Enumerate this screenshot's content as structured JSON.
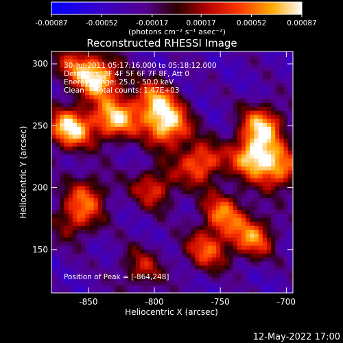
{
  "chart_data": {
    "type": "heatmap",
    "title": "Reconstructed RHESSI Image",
    "xlabel": "Heliocentric X (arcsec)",
    "ylabel": "Heliocentric Y (arcsec)",
    "xlim": [
      -878,
      -695
    ],
    "ylim": [
      115,
      310
    ],
    "x_ticks": [
      -850,
      -800,
      -750,
      -700
    ],
    "y_ticks": [
      150,
      200,
      250,
      300
    ],
    "colorbar": {
      "min": -0.00087,
      "max": 0.00087,
      "tick_values": [
        -0.00087,
        -0.00052,
        -0.00017,
        0.00017,
        0.00052,
        0.00087
      ],
      "tick_labels": [
        "-0.00087",
        "-0.00052",
        "-0.00017",
        "0.00017",
        "0.00052",
        "0.00087"
      ],
      "unit_label": "(photons cm⁻² s⁻¹ asec⁻²)"
    },
    "annotations": {
      "time_range": "30-Jul-2011 05:17:16.000 to 05:18:12.000",
      "detectors": "Detectors: 3F 4F 5F 6F 7F 8F, Att 0",
      "energy_range": "Energy Range: 25.0 - 50.0 keV",
      "clean_counts": "Clean     Total counts: 1.47E+03",
      "peak": "Position of Peak = [-864,248]"
    },
    "peak_position": [
      -864,
      248
    ],
    "intensity_features": [
      {
        "x": -864,
        "y": 248,
        "value": 0.00087
      },
      {
        "x": -842,
        "y": 288,
        "value": 0.0008
      },
      {
        "x": -830,
        "y": 255,
        "value": 0.00075
      },
      {
        "x": -790,
        "y": 250,
        "value": 0.0008
      },
      {
        "x": -800,
        "y": 270,
        "value": 0.0006
      },
      {
        "x": -765,
        "y": 220,
        "value": 0.0006
      },
      {
        "x": -725,
        "y": 225,
        "value": 0.00078
      },
      {
        "x": -718,
        "y": 250,
        "value": 0.0007
      },
      {
        "x": -705,
        "y": 215,
        "value": 0.00055
      },
      {
        "x": -748,
        "y": 180,
        "value": 0.0005
      },
      {
        "x": -760,
        "y": 150,
        "value": 0.00045
      },
      {
        "x": -725,
        "y": 160,
        "value": 0.00055
      },
      {
        "x": -800,
        "y": 200,
        "value": 0.0004
      },
      {
        "x": -850,
        "y": 195,
        "value": 0.0003
      },
      {
        "x": -860,
        "y": 175,
        "value": 0.00035
      },
      {
        "x": -810,
        "y": 135,
        "value": 0.00025
      },
      {
        "x": -860,
        "y": 300,
        "value": 0.0003
      }
    ]
  },
  "footer": {
    "date_stamp": "12-May-2022 17:00"
  }
}
